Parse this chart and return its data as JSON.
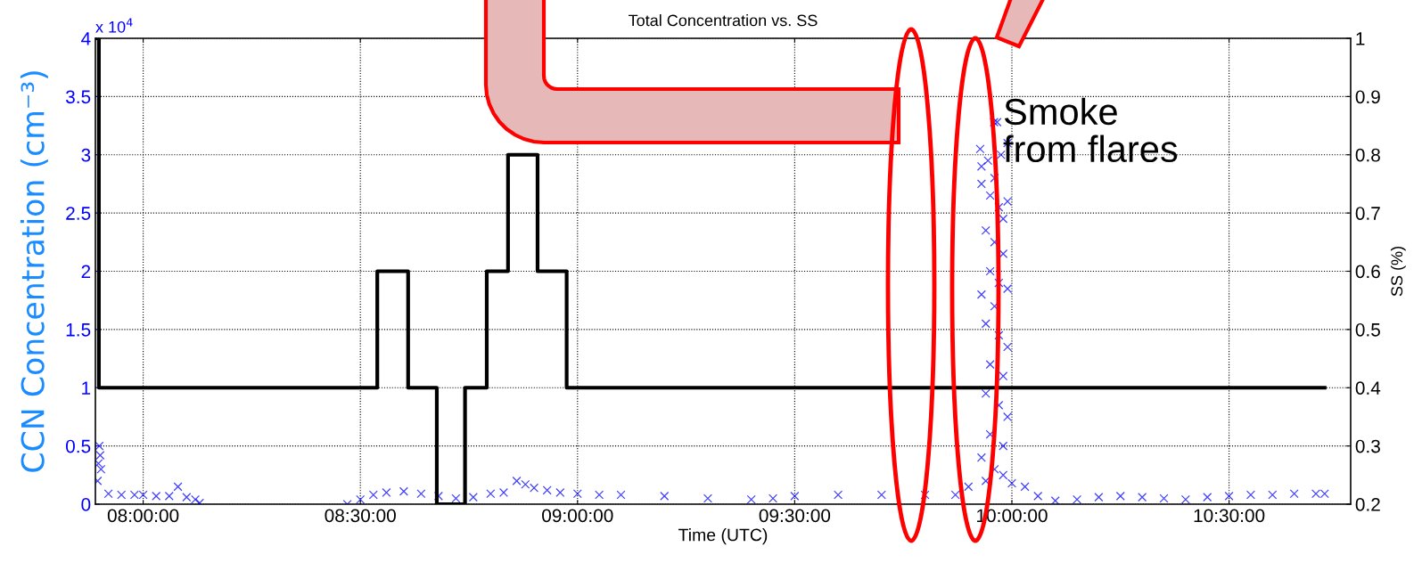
{
  "chart_data": {
    "type": "scatter",
    "title": "Total Concentration vs. SS",
    "xlabel": "Time (UTC)",
    "ylabel": "CCN Concentration (cm⁻³)",
    "y2label": "SS (%)",
    "annotations": [
      "x 10$^{4}$",
      "Smoke\nfrom flares"
    ],
    "xlim": [
      7.89,
      10.78
    ],
    "xticks": [
      {
        "value": 8,
        "label": "08:00:00"
      },
      {
        "value": 8.5,
        "label": "08:30:00"
      },
      {
        "value": 9,
        "label": "09:00:00"
      },
      {
        "value": 9.5,
        "label": "09:30:00"
      },
      {
        "value": 10,
        "label": "10:00:00"
      },
      {
        "value": 10.5,
        "label": "10:30:00"
      }
    ],
    "ylim": [
      0,
      4
    ],
    "yticks": [
      0,
      0.5,
      1,
      1.5,
      2,
      2.5,
      3,
      3.5,
      4
    ],
    "y2lim": [
      0.2,
      1
    ],
    "y2ticks": [
      0.2,
      0.3,
      0.4,
      0.5,
      0.6,
      0.7,
      0.8,
      0.9,
      1
    ],
    "grid": true,
    "series": [
      {
        "color": "#0000ff",
        "marker": "cross",
        "x": [
          7.895,
          7.897,
          7.899,
          7.901,
          7.903,
          7.92,
          7.95,
          7.98,
          8.0,
          8.03,
          8.06,
          8.08,
          8.1,
          8.12,
          8.13,
          8.47,
          8.5,
          8.53,
          8.56,
          8.6,
          8.64,
          8.68,
          8.72,
          8.76,
          8.8,
          8.83,
          8.86,
          8.88,
          8.9,
          8.93,
          8.96,
          9.0,
          9.05,
          9.1,
          9.2,
          9.3,
          9.4,
          9.45,
          9.5,
          9.6,
          9.7,
          9.8,
          9.87,
          9.9,
          9.959,
          9.966,
          9.927,
          9.93,
          9.945,
          9.96,
          9.975,
          9.99,
          9.93,
          9.95,
          9.97,
          9.98,
          9.99,
          9.94,
          9.96,
          9.98,
          9.95,
          9.97,
          9.99,
          9.93,
          9.96,
          9.94,
          9.97,
          9.99,
          9.95,
          9.98,
          9.94,
          9.97,
          9.99,
          9.95,
          9.98,
          9.93,
          9.96,
          9.98,
          9.94,
          10.0,
          10.03,
          10.06,
          10.1,
          10.15,
          10.2,
          10.25,
          10.3,
          10.35,
          10.4,
          10.45,
          10.5,
          10.55,
          10.6,
          10.65,
          10.7,
          10.72
        ],
        "values": [
          0.2,
          0.35,
          0.5,
          0.42,
          0.3,
          0.09,
          0.08,
          0.08,
          0.08,
          0.07,
          0.07,
          0.15,
          0.06,
          0.04,
          0.01,
          0,
          0.04,
          0.08,
          0.1,
          0.11,
          0.09,
          0.07,
          0.05,
          0.06,
          0.09,
          0.1,
          0.2,
          0.17,
          0.14,
          0.12,
          0.1,
          0.09,
          0.08,
          0.08,
          0.07,
          0.05,
          0.04,
          0.05,
          0.07,
          0.08,
          0.08,
          0.08,
          0.08,
          0.15,
          3.28,
          3.28,
          3.05,
          2.9,
          2.95,
          2.8,
          3.0,
          3.1,
          2.75,
          2.65,
          2.55,
          2.45,
          2.6,
          2.35,
          2.25,
          2.15,
          2.0,
          1.9,
          1.85,
          1.8,
          1.7,
          1.55,
          1.45,
          1.35,
          1.2,
          1.1,
          0.95,
          0.85,
          0.75,
          0.6,
          0.5,
          0.4,
          0.3,
          0.25,
          0.2,
          0.18,
          0.15,
          0.07,
          0.03,
          0.04,
          0.06,
          0.07,
          0.06,
          0.05,
          0.04,
          0.06,
          0.07,
          0.08,
          0.08,
          0.09,
          0.09,
          0.09
        ]
      },
      {
        "type": "step",
        "axis": "y2",
        "color": "#000000",
        "marker": "none",
        "line_style": "solid",
        "x": [
          7.893,
          7.898,
          8.539,
          8.61,
          8.676,
          8.741,
          8.791,
          8.84,
          8.908,
          8.975,
          10.72
        ],
        "values": [
          1.0,
          0.4,
          0.6,
          0.4,
          0.2,
          0.4,
          0.6,
          0.8,
          0.6,
          0.4,
          0.4
        ]
      }
    ]
  }
}
